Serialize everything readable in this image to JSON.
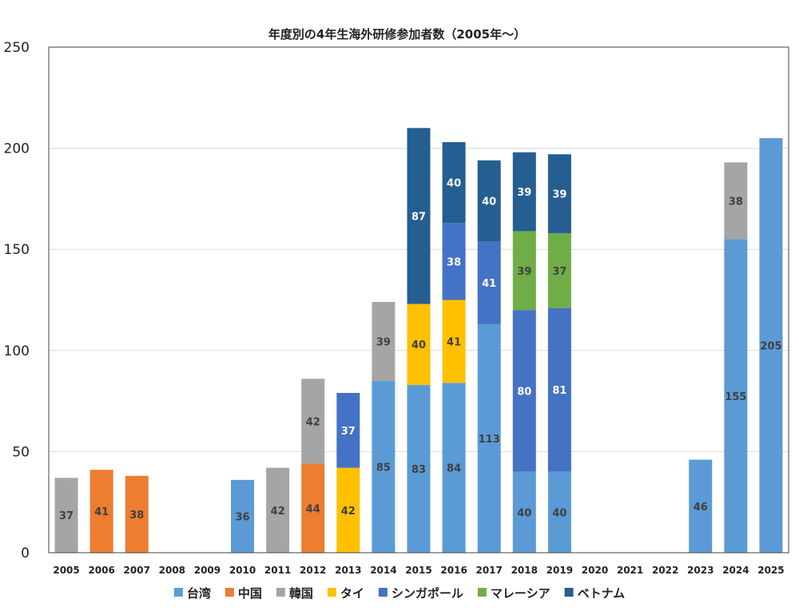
{
  "chart_data": {
    "type": "bar",
    "stacked": true,
    "title": "年度別の4年生海外研修参加者数（2005年〜）",
    "xlabel": "",
    "ylabel": "",
    "ylim": [
      0,
      250
    ],
    "yticks": [
      0,
      50,
      100,
      150,
      200,
      250
    ],
    "grid": true,
    "legend_position": "bottom",
    "categories": [
      "2005",
      "2006",
      "2007",
      "2008",
      "2009",
      "2010",
      "2011",
      "2012",
      "2013",
      "2014",
      "2015",
      "2016",
      "2017",
      "2018",
      "2019",
      "2020",
      "2021",
      "2022",
      "2023",
      "2024",
      "2025"
    ],
    "series": [
      {
        "name": "台湾",
        "color": "#5B9BD5",
        "label_color": "#404040",
        "values": [
          null,
          null,
          null,
          null,
          null,
          36,
          null,
          null,
          null,
          85,
          83,
          84,
          113,
          40,
          40,
          null,
          null,
          null,
          46,
          155,
          205
        ]
      },
      {
        "name": "中国",
        "color": "#ED7D31",
        "label_color": "#404040",
        "values": [
          null,
          41,
          38,
          null,
          null,
          null,
          null,
          44,
          null,
          null,
          null,
          null,
          null,
          null,
          null,
          null,
          null,
          null,
          null,
          null,
          null
        ]
      },
      {
        "name": "韓国",
        "color": "#A5A5A5",
        "label_color": "#404040",
        "values": [
          37,
          null,
          null,
          null,
          null,
          null,
          42,
          42,
          null,
          39,
          null,
          null,
          null,
          null,
          null,
          null,
          null,
          null,
          null,
          38,
          null
        ]
      },
      {
        "name": "タイ",
        "color": "#FFC000",
        "label_color": "#404040",
        "values": [
          null,
          null,
          null,
          null,
          null,
          null,
          null,
          null,
          42,
          null,
          40,
          41,
          null,
          null,
          null,
          null,
          null,
          null,
          null,
          null,
          null
        ]
      },
      {
        "name": "シンガポール",
        "color": "#4472C4",
        "label_color": "#ffffff",
        "values": [
          null,
          null,
          null,
          null,
          null,
          null,
          null,
          null,
          37,
          null,
          null,
          38,
          41,
          80,
          81,
          null,
          null,
          null,
          null,
          null,
          null
        ]
      },
      {
        "name": "マレーシア",
        "color": "#70AD47",
        "label_color": "#404040",
        "values": [
          null,
          null,
          null,
          null,
          null,
          null,
          null,
          null,
          null,
          null,
          null,
          null,
          null,
          39,
          37,
          null,
          null,
          null,
          null,
          null,
          null
        ]
      },
      {
        "name": "ベトナム",
        "color": "#255E91",
        "label_color": "#ffffff",
        "values": [
          null,
          null,
          null,
          null,
          null,
          null,
          null,
          null,
          null,
          null,
          87,
          40,
          40,
          39,
          39,
          null,
          null,
          null,
          null,
          null,
          null
        ]
      }
    ]
  }
}
